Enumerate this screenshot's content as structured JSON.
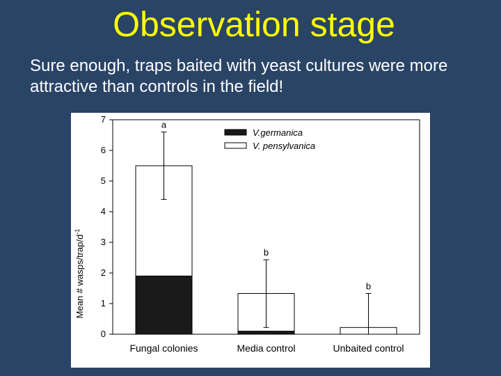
{
  "slide": {
    "title": "Observation stage",
    "body": "Sure enough, traps baited with yeast cultures were more attractive than controls in the field!"
  },
  "colors": {
    "background": "#2a4466",
    "title": "#ffff00",
    "text": "#ffffff",
    "germanica": "#1a1a1a",
    "pensylvanica": "#ffffff"
  },
  "chart_data": {
    "type": "bar",
    "stacked": true,
    "title": "",
    "xlabel": "",
    "ylabel": "Mean # wasps/trap/d",
    "ylabel_superscript": "-1",
    "ylim": [
      0,
      7
    ],
    "yticks": [
      0,
      1,
      2,
      3,
      4,
      5,
      6,
      7
    ],
    "categories": [
      "Fungal colonies",
      "Media control",
      "Unbaited control"
    ],
    "series": [
      {
        "name": "V.germanica",
        "values": [
          1.9,
          0.1,
          0.0
        ]
      },
      {
        "name": "V. pensylvanica",
        "values": [
          3.6,
          1.23,
          0.22
        ]
      }
    ],
    "totals": [
      5.5,
      1.33,
      0.22
    ],
    "error_bars": [
      {
        "low": 4.4,
        "high": 6.6
      },
      {
        "low": 0.22,
        "high": 2.43
      },
      {
        "low": 0.0,
        "high": 1.33
      }
    ],
    "significance_letters": [
      "a",
      "b",
      "b"
    ],
    "legend_position": "top-right",
    "grid": false
  }
}
